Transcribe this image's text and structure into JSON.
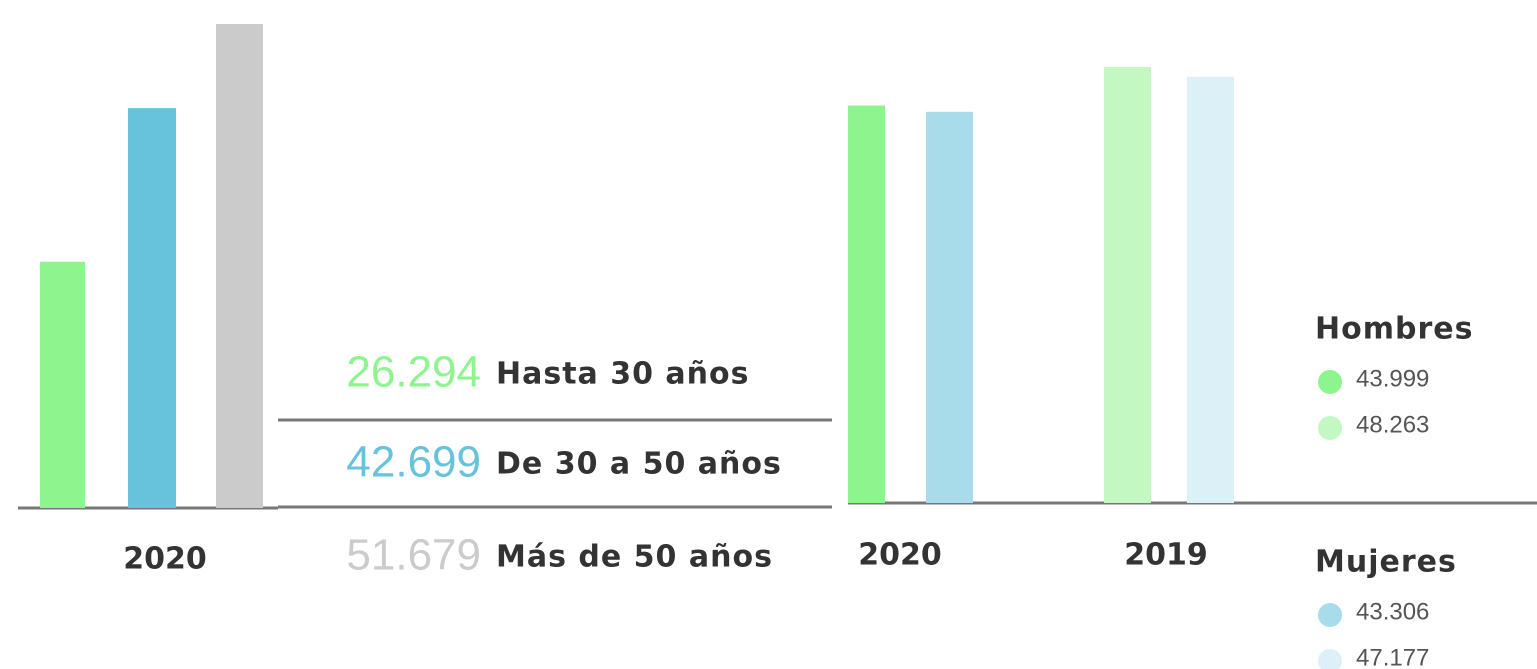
{
  "chart_data": [
    {
      "type": "bar",
      "categories": [
        "2020"
      ],
      "series": [
        {
          "name": "Hasta 30 años",
          "color": "#8ef58e",
          "values": [
            26294
          ],
          "value_labels": [
            "26.294"
          ]
        },
        {
          "name": "De 30 a 50 años",
          "color": "#67c3dc",
          "values": [
            42699
          ],
          "value_labels": [
            "42.699"
          ]
        },
        {
          "name": "Más de 50 años",
          "color": "#cbcbcb",
          "values": [
            51679
          ],
          "value_labels": [
            "51.679"
          ]
        }
      ]
    },
    {
      "type": "bar",
      "categories": [
        "2020",
        "2019"
      ],
      "series": [
        {
          "name": "Hombres",
          "colors": [
            "#8ef58e",
            "#c3f8c3"
          ],
          "values": [
            43999,
            48263
          ],
          "value_labels": [
            "43.999",
            "48.263"
          ]
        },
        {
          "name": "Mujeres",
          "colors": [
            "#a8dcea",
            "#dcf1f7"
          ],
          "values": [
            43306,
            47177
          ],
          "value_labels": [
            "43.306",
            "47.177"
          ]
        }
      ]
    }
  ]
}
